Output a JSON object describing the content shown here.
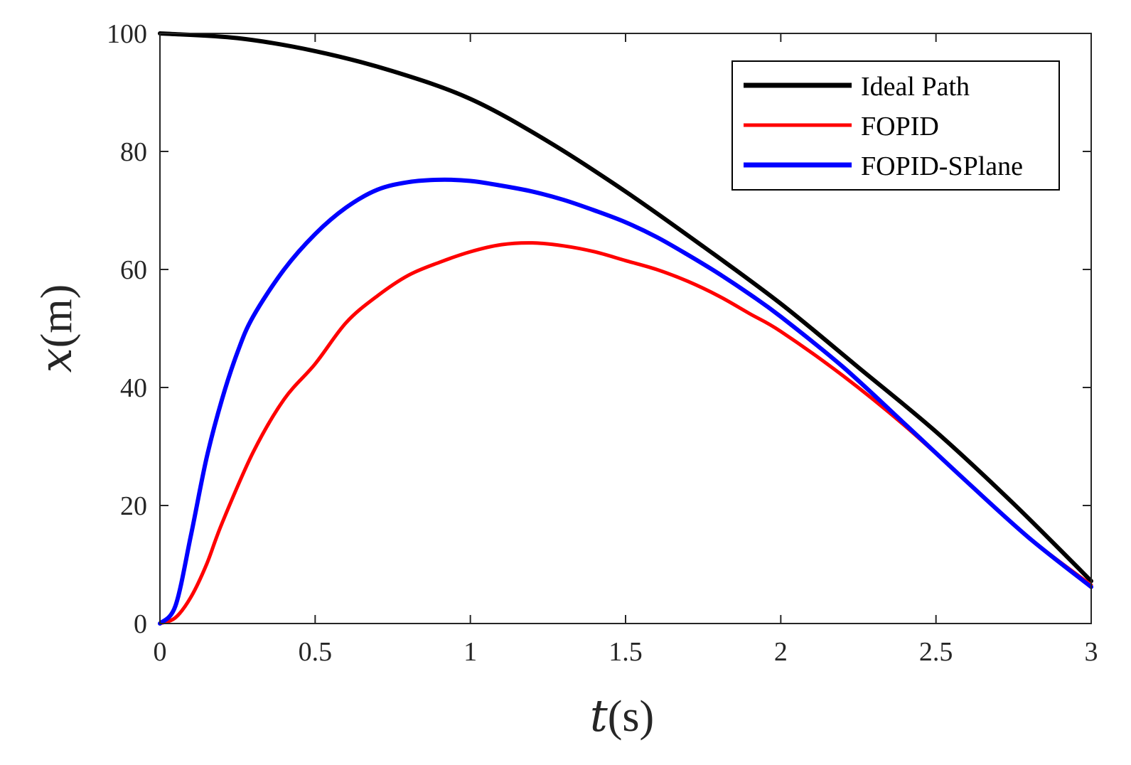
{
  "chart_data": {
    "type": "line",
    "title": "",
    "xlabel": {
      "var": "t",
      "unit": "(s)"
    },
    "ylabel": {
      "var": "x",
      "unit": "(m)"
    },
    "xlim": [
      0,
      3
    ],
    "ylim": [
      0,
      100
    ],
    "xticks": [
      0,
      0.5,
      1,
      1.5,
      2,
      2.5,
      3
    ],
    "xtick_labels": [
      "0",
      "0.5",
      "1",
      "1.5",
      "2",
      "2.5",
      "3"
    ],
    "yticks": [
      0,
      20,
      40,
      60,
      80,
      100
    ],
    "ytick_labels": [
      "0",
      "20",
      "40",
      "60",
      "80",
      "100"
    ],
    "grid": false,
    "legend_position": "top-right",
    "series": [
      {
        "name": "Ideal Path",
        "color": "#000000",
        "x": [
          0,
          0.25,
          0.5,
          0.75,
          1.0,
          1.25,
          1.5,
          1.75,
          2.0,
          2.25,
          2.5,
          2.75,
          3.0
        ],
        "y": [
          100,
          99.2,
          97,
          93.6,
          88.9,
          81.7,
          73.2,
          63.9,
          54.2,
          43.4,
          32.5,
          20.3,
          7.2
        ]
      },
      {
        "name": "FOPID",
        "color": "#ff0000",
        "x": [
          0,
          0.05,
          0.1,
          0.15,
          0.2,
          0.3,
          0.4,
          0.5,
          0.6,
          0.7,
          0.8,
          0.9,
          1.0,
          1.1,
          1.2,
          1.3,
          1.4,
          1.5,
          1.6,
          1.7,
          1.8,
          1.9,
          2.0,
          2.2,
          2.4,
          2.6,
          2.8,
          3.0
        ],
        "y": [
          0,
          1,
          4.5,
          10,
          17,
          29,
          38,
          44,
          51,
          55.5,
          59,
          61.2,
          63,
          64.2,
          64.5,
          64,
          63,
          61.5,
          60,
          58,
          55.5,
          52.5,
          49.5,
          42,
          33.5,
          24,
          14.5,
          6.5
        ]
      },
      {
        "name": "FOPID-SPlane",
        "color": "#0000ff",
        "x": [
          0,
          0.05,
          0.1,
          0.15,
          0.2,
          0.25,
          0.3,
          0.4,
          0.5,
          0.6,
          0.7,
          0.8,
          0.9,
          1.0,
          1.1,
          1.2,
          1.3,
          1.4,
          1.5,
          1.6,
          1.7,
          1.8,
          1.9,
          2.0,
          2.2,
          2.4,
          2.6,
          2.8,
          3.0
        ],
        "y": [
          0,
          3,
          15,
          28,
          38,
          46,
          52,
          60,
          66,
          70.5,
          73.5,
          74.8,
          75.2,
          75,
          74.2,
          73.2,
          71.8,
          70,
          68,
          65.5,
          62.5,
          59.3,
          55.8,
          52,
          43.5,
          33.8,
          24,
          14.5,
          6.2
        ]
      }
    ]
  }
}
